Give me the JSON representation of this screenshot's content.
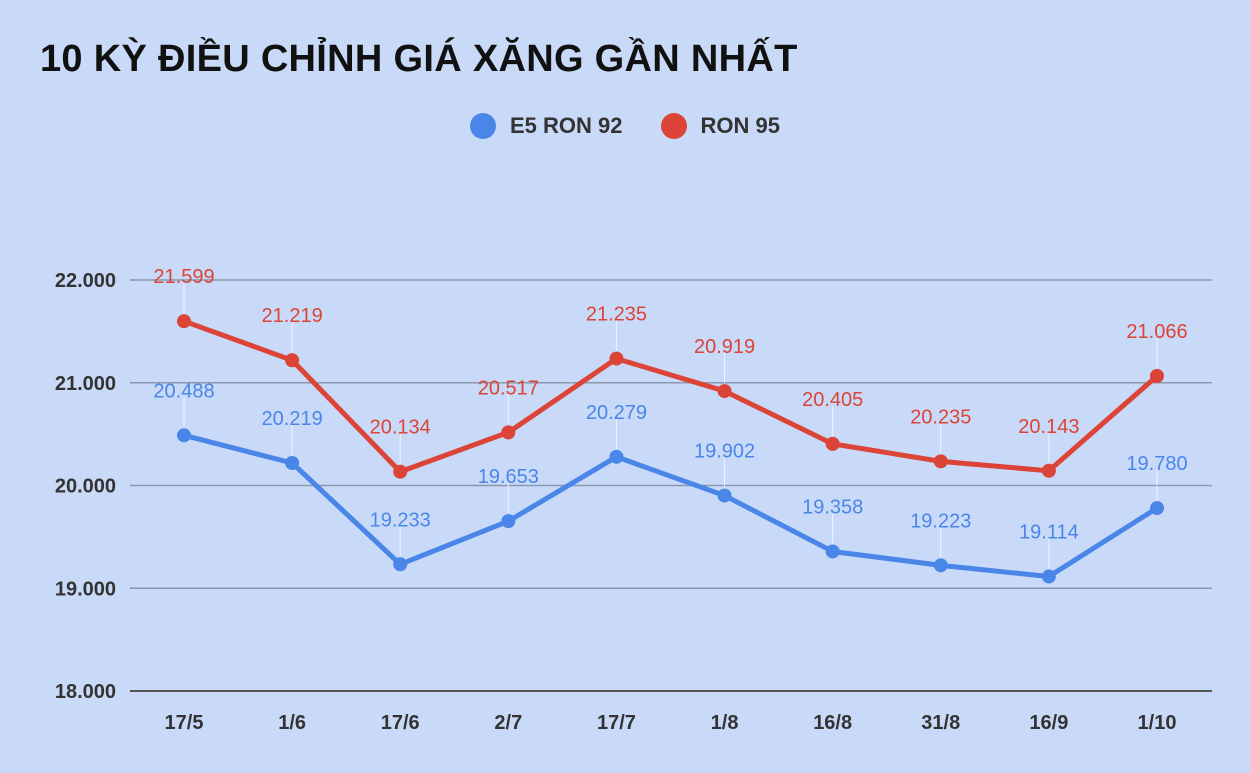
{
  "title": "10 KỲ ĐIỀU CHỈNH GIÁ XĂNG GẦN NHẤT",
  "chart_data": {
    "type": "line",
    "title": "10 KỲ ĐIỀU CHỈNH GIÁ XĂNG GẦN NHẤT",
    "categories": [
      "17/5",
      "1/6",
      "17/6",
      "2/7",
      "17/7",
      "1/8",
      "16/8",
      "31/8",
      "16/9",
      "1/10"
    ],
    "series": [
      {
        "name": "E5 RON 92",
        "color": "#4a86e8",
        "values": [
          20488,
          20219,
          19233,
          19653,
          20279,
          19902,
          19358,
          19223,
          19114,
          19780
        ],
        "labels": [
          "20.488",
          "20.219",
          "19.233",
          "19.653",
          "20.279",
          "19.902",
          "19.358",
          "19.223",
          "19.114",
          "19.780"
        ]
      },
      {
        "name": "RON 95",
        "color": "#db4437",
        "values": [
          21599,
          21219,
          20134,
          20517,
          21235,
          20919,
          20405,
          20235,
          20143,
          21066
        ],
        "labels": [
          "21.599",
          "21.219",
          "20.134",
          "20.517",
          "21.235",
          "20.919",
          "20.405",
          "20.235",
          "20.143",
          "21.066"
        ]
      }
    ],
    "ylim": [
      18000,
      22000
    ],
    "yticks": [
      18000,
      19000,
      20000,
      21000,
      22000
    ],
    "ytick_labels": [
      "18.000",
      "19.000",
      "20.000",
      "21.000",
      "22.000"
    ],
    "xlabel": "",
    "ylabel": "",
    "grid": true,
    "legend_position": "top-center"
  }
}
